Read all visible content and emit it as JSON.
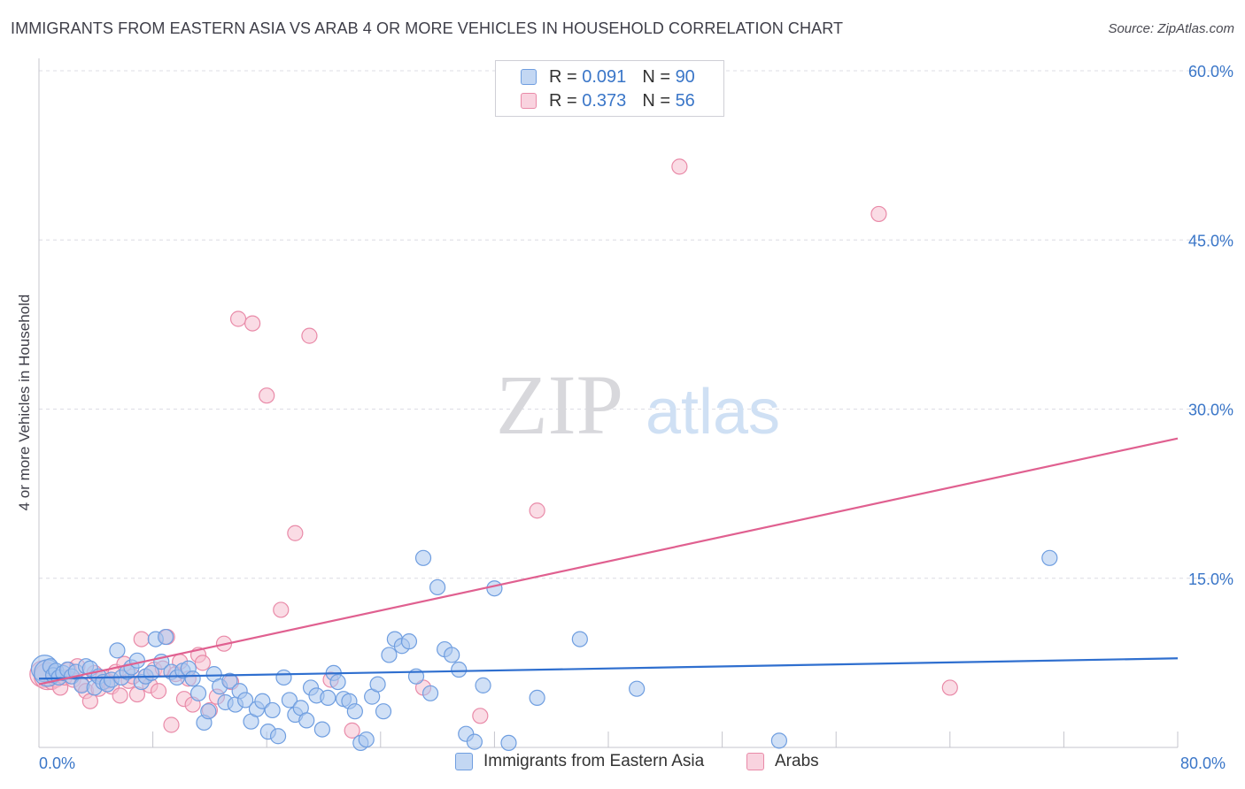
{
  "title": "IMMIGRANTS FROM EASTERN ASIA VS ARAB 4 OR MORE VEHICLES IN HOUSEHOLD CORRELATION CHART",
  "source": "Source: ZipAtlas.com",
  "watermark": {
    "zip": "ZIP",
    "atlas": "atlas"
  },
  "legend": {
    "r_label": "R =",
    "n_label": "N =",
    "rows": [
      {
        "r": "0.091",
        "n": "90"
      },
      {
        "r": "0.373",
        "n": "56"
      }
    ]
  },
  "colors": {
    "blue_fill": "#a9c6ee",
    "blue_stroke": "#6f9ee0",
    "blue_line": "#2f6fcf",
    "pink_fill": "#f6bfd0",
    "pink_stroke": "#e98aa8",
    "pink_line": "#e06090",
    "tick_text": "#3a76c8",
    "grid": "#dcdce4"
  },
  "chart_data": {
    "type": "scatter",
    "title": "IMMIGRANTS FROM EASTERN ASIA VS ARAB 4 OR MORE VEHICLES IN HOUSEHOLD CORRELATION CHART",
    "xlabel": "",
    "ylabel": "4 or more Vehicles in Household",
    "xlim": [
      0,
      80
    ],
    "ylim": [
      0,
      60
    ],
    "x_tick_labels": [
      "0.0%",
      "80.0%"
    ],
    "y_ticks": [
      15,
      30,
      45,
      60
    ],
    "y_tick_labels": [
      "15.0%",
      "30.0%",
      "45.0%",
      "60.0%"
    ],
    "series": [
      {
        "name": "Immigrants from Eastern Asia",
        "color": "blue",
        "trend": {
          "x": [
            0,
            80
          ],
          "y": [
            6.1,
            7.9
          ]
        },
        "points": [
          [
            0.4,
            7.0
          ],
          [
            0.6,
            6.6
          ],
          [
            0.8,
            7.2
          ],
          [
            1.0,
            6.4
          ],
          [
            1.2,
            6.8
          ],
          [
            1.4,
            6.2
          ],
          [
            1.7,
            6.6
          ],
          [
            2.0,
            6.9
          ],
          [
            2.3,
            6.3
          ],
          [
            2.6,
            6.7
          ],
          [
            3.0,
            5.5
          ],
          [
            3.3,
            7.2
          ],
          [
            3.6,
            7.0
          ],
          [
            3.9,
            5.3
          ],
          [
            4.2,
            6.3
          ],
          [
            4.5,
            5.8
          ],
          [
            4.8,
            5.6
          ],
          [
            5.1,
            6.0
          ],
          [
            5.5,
            8.6
          ],
          [
            5.8,
            6.2
          ],
          [
            6.2,
            6.7
          ],
          [
            6.5,
            7.1
          ],
          [
            6.9,
            7.7
          ],
          [
            7.2,
            5.8
          ],
          [
            7.5,
            6.3
          ],
          [
            7.9,
            6.6
          ],
          [
            8.2,
            9.6
          ],
          [
            8.6,
            7.6
          ],
          [
            8.9,
            9.8
          ],
          [
            9.3,
            6.7
          ],
          [
            9.7,
            6.2
          ],
          [
            10.1,
            6.8
          ],
          [
            10.5,
            7.0
          ],
          [
            10.8,
            6.1
          ],
          [
            11.2,
            4.8
          ],
          [
            11.6,
            2.2
          ],
          [
            11.9,
            3.2
          ],
          [
            12.3,
            6.5
          ],
          [
            12.7,
            5.4
          ],
          [
            13.1,
            4.0
          ],
          [
            13.4,
            5.9
          ],
          [
            13.8,
            3.8
          ],
          [
            14.1,
            5.0
          ],
          [
            14.5,
            4.2
          ],
          [
            14.9,
            2.3
          ],
          [
            15.3,
            3.4
          ],
          [
            15.7,
            4.1
          ],
          [
            16.1,
            1.4
          ],
          [
            16.4,
            3.3
          ],
          [
            16.8,
            1.0
          ],
          [
            17.2,
            6.2
          ],
          [
            17.6,
            4.2
          ],
          [
            18.0,
            2.9
          ],
          [
            18.4,
            3.5
          ],
          [
            18.8,
            2.4
          ],
          [
            19.1,
            5.3
          ],
          [
            19.5,
            4.6
          ],
          [
            19.9,
            1.6
          ],
          [
            20.3,
            4.4
          ],
          [
            20.7,
            6.6
          ],
          [
            21.0,
            5.8
          ],
          [
            21.4,
            4.3
          ],
          [
            21.8,
            4.1
          ],
          [
            22.2,
            3.2
          ],
          [
            22.6,
            0.4
          ],
          [
            23.0,
            0.7
          ],
          [
            23.4,
            4.5
          ],
          [
            23.8,
            5.6
          ],
          [
            24.2,
            3.2
          ],
          [
            24.6,
            8.2
          ],
          [
            25.0,
            9.6
          ],
          [
            25.5,
            9.0
          ],
          [
            26.0,
            9.4
          ],
          [
            26.5,
            6.3
          ],
          [
            27.0,
            16.8
          ],
          [
            27.5,
            4.8
          ],
          [
            28.0,
            14.2
          ],
          [
            28.5,
            8.7
          ],
          [
            29.0,
            8.2
          ],
          [
            29.5,
            6.9
          ],
          [
            30.0,
            1.2
          ],
          [
            30.6,
            0.5
          ],
          [
            31.2,
            5.5
          ],
          [
            32.0,
            14.1
          ],
          [
            33.0,
            0.4
          ],
          [
            35.0,
            4.4
          ],
          [
            38.0,
            9.6
          ],
          [
            42.0,
            5.2
          ],
          [
            52.0,
            0.6
          ],
          [
            71.0,
            16.8
          ]
        ]
      },
      {
        "name": "Arabs",
        "color": "pink",
        "trend": {
          "x": [
            0,
            80
          ],
          "y": [
            5.6,
            27.4
          ]
        },
        "points": [
          [
            0.3,
            6.5
          ],
          [
            0.6,
            6.3
          ],
          [
            0.9,
            5.8
          ],
          [
            1.2,
            6.0
          ],
          [
            1.5,
            5.3
          ],
          [
            1.8,
            6.2
          ],
          [
            2.1,
            6.9
          ],
          [
            2.4,
            6.0
          ],
          [
            2.7,
            7.2
          ],
          [
            3.0,
            5.6
          ],
          [
            3.3,
            5.0
          ],
          [
            3.6,
            4.1
          ],
          [
            3.9,
            6.6
          ],
          [
            4.2,
            5.2
          ],
          [
            4.5,
            6.2
          ],
          [
            4.8,
            5.9
          ],
          [
            5.1,
            5.4
          ],
          [
            5.4,
            6.7
          ],
          [
            5.7,
            4.6
          ],
          [
            6.0,
            7.4
          ],
          [
            6.3,
            5.9
          ],
          [
            6.6,
            6.3
          ],
          [
            6.9,
            4.7
          ],
          [
            7.2,
            9.6
          ],
          [
            7.5,
            6.3
          ],
          [
            7.8,
            5.5
          ],
          [
            8.1,
            6.9
          ],
          [
            8.4,
            5.0
          ],
          [
            8.7,
            7.0
          ],
          [
            9.0,
            9.8
          ],
          [
            9.3,
            2.0
          ],
          [
            9.6,
            6.5
          ],
          [
            9.9,
            7.6
          ],
          [
            10.2,
            4.3
          ],
          [
            10.5,
            6.1
          ],
          [
            10.8,
            3.8
          ],
          [
            11.2,
            8.2
          ],
          [
            11.5,
            7.5
          ],
          [
            12.0,
            3.3
          ],
          [
            12.5,
            4.5
          ],
          [
            13.0,
            9.2
          ],
          [
            13.5,
            5.8
          ],
          [
            14.0,
            38.0
          ],
          [
            15.0,
            37.6
          ],
          [
            16.0,
            31.2
          ],
          [
            17.0,
            12.2
          ],
          [
            18.0,
            19.0
          ],
          [
            19.0,
            36.5
          ],
          [
            20.5,
            6.0
          ],
          [
            22.0,
            1.5
          ],
          [
            27.0,
            5.3
          ],
          [
            31.0,
            2.8
          ],
          [
            35.0,
            21.0
          ],
          [
            45.0,
            51.5
          ],
          [
            59.0,
            47.3
          ],
          [
            64.0,
            5.3
          ]
        ]
      }
    ]
  },
  "bottom_legend": [
    {
      "label": "Immigrants from Eastern Asia"
    },
    {
      "label": "Arabs"
    }
  ]
}
